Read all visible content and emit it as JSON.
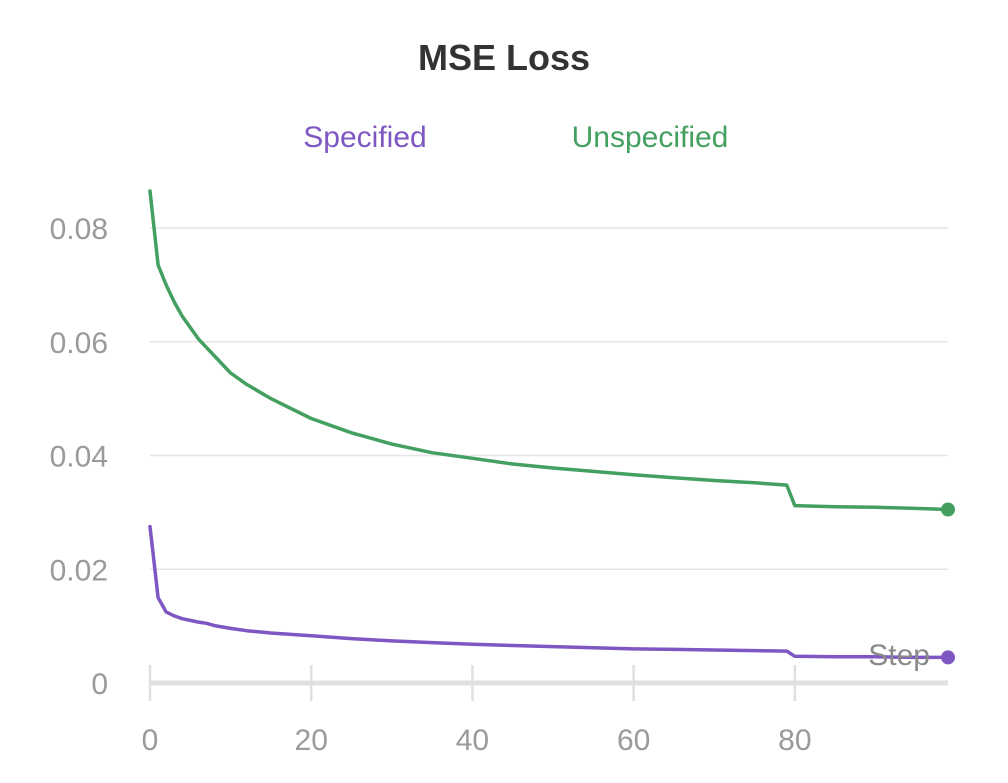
{
  "chart_data": {
    "type": "line",
    "title": "MSE Loss",
    "xlabel": "Step",
    "ylabel": "",
    "xlim": [
      0,
      99
    ],
    "ylim": [
      0,
      0.09
    ],
    "x_ticks": [
      0,
      20,
      40,
      60,
      80
    ],
    "x_tick_labels": [
      "0",
      "20",
      "40",
      "60",
      "80"
    ],
    "y_ticks": [
      0,
      0.02,
      0.04,
      0.06,
      0.08
    ],
    "y_tick_labels": [
      "0",
      "0.02",
      "0.04",
      "0.06",
      "0.08"
    ],
    "grid": true,
    "legend_position": "top",
    "series": [
      {
        "name": "Specified",
        "color": "#7e57c2",
        "points": [
          [
            0,
            0.0275
          ],
          [
            1,
            0.015
          ],
          [
            2,
            0.0125
          ],
          [
            3,
            0.0118
          ],
          [
            4,
            0.0113
          ],
          [
            5,
            0.011
          ],
          [
            6,
            0.0107
          ],
          [
            7,
            0.0105
          ],
          [
            8,
            0.0101
          ],
          [
            10,
            0.0096
          ],
          [
            12,
            0.0092
          ],
          [
            15,
            0.0088
          ],
          [
            20,
            0.0083
          ],
          [
            25,
            0.0078
          ],
          [
            30,
            0.0074
          ],
          [
            35,
            0.0071
          ],
          [
            40,
            0.0068
          ],
          [
            45,
            0.0066
          ],
          [
            50,
            0.0064
          ],
          [
            55,
            0.0062
          ],
          [
            60,
            0.006
          ],
          [
            65,
            0.0059
          ],
          [
            70,
            0.0058
          ],
          [
            75,
            0.0057
          ],
          [
            79,
            0.0056
          ],
          [
            80,
            0.0047
          ],
          [
            85,
            0.0046
          ],
          [
            90,
            0.0046
          ],
          [
            95,
            0.0045
          ],
          [
            99,
            0.0045
          ]
        ]
      },
      {
        "name": "Unspecified",
        "color": "#43a060",
        "points": [
          [
            0,
            0.0865
          ],
          [
            1,
            0.0735
          ],
          [
            2,
            0.07
          ],
          [
            3,
            0.067
          ],
          [
            4,
            0.0645
          ],
          [
            5,
            0.0625
          ],
          [
            6,
            0.0605
          ],
          [
            7,
            0.059
          ],
          [
            8,
            0.0575
          ],
          [
            10,
            0.0545
          ],
          [
            12,
            0.0525
          ],
          [
            15,
            0.05
          ],
          [
            20,
            0.0465
          ],
          [
            25,
            0.044
          ],
          [
            30,
            0.042
          ],
          [
            35,
            0.0405
          ],
          [
            40,
            0.0395
          ],
          [
            45,
            0.0385
          ],
          [
            50,
            0.0378
          ],
          [
            55,
            0.0372
          ],
          [
            60,
            0.0366
          ],
          [
            65,
            0.0361
          ],
          [
            70,
            0.0356
          ],
          [
            75,
            0.0352
          ],
          [
            79,
            0.0348
          ],
          [
            80,
            0.0312
          ],
          [
            85,
            0.031
          ],
          [
            90,
            0.0309
          ],
          [
            95,
            0.0307
          ],
          [
            99,
            0.0305
          ]
        ]
      }
    ]
  }
}
